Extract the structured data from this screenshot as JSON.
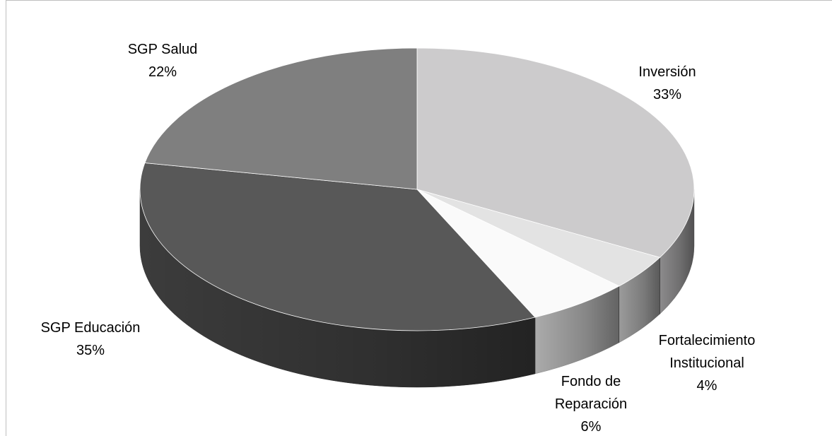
{
  "chart_data": {
    "type": "pie",
    "style": "3d",
    "title": "",
    "slices": [
      {
        "label": "Inversión",
        "value": 33,
        "display": "33%",
        "color": "#cccbcc"
      },
      {
        "label": "Fortalecimiento Institucional",
        "value": 4,
        "display": "4%",
        "color": "#e3e3e3"
      },
      {
        "label": "Fondo de Reparación",
        "value": 6,
        "display": "6%",
        "color": "#fafafa"
      },
      {
        "label": "SGP Educación",
        "value": 35,
        "display": "35%",
        "color": "#585858"
      },
      {
        "label": "SGP Salud",
        "value": 22,
        "display": "22%",
        "color": "#7f7f7f"
      }
    ],
    "legend": "none",
    "data_labels": "outside"
  }
}
